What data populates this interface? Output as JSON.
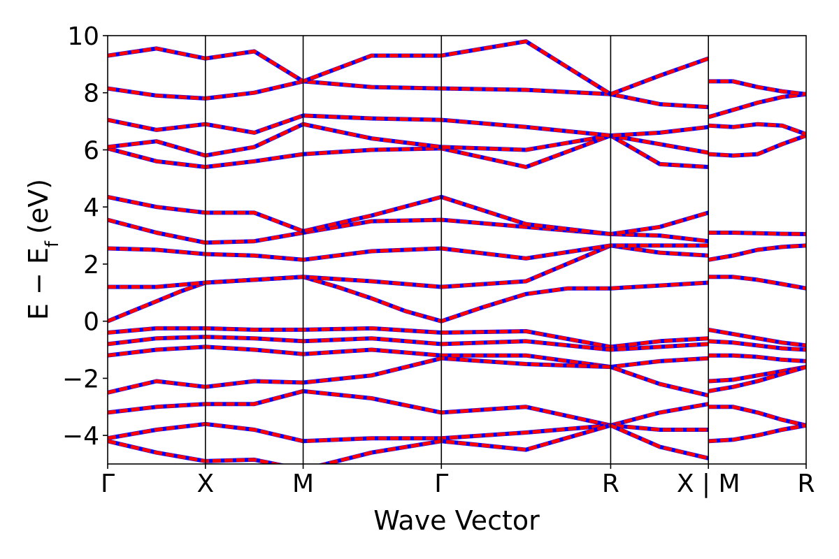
{
  "chart_data": {
    "type": "line",
    "xlabel": "Wave Vector",
    "ylabel_main": "E − E",
    "ylabel_sub": "f",
    "ylabel_unit": "(eV)",
    "ylim": [
      -5,
      10
    ],
    "yticks": [
      -4,
      -2,
      0,
      2,
      4,
      6,
      8,
      10
    ],
    "ytick_labels": [
      "−4",
      "−2",
      "0",
      "2",
      "4",
      "6",
      "8",
      "10"
    ],
    "xticks": [
      0,
      1,
      2,
      3.4142,
      5.1463,
      6.1463,
      7.1463
    ],
    "xtick_labels": [
      "Γ",
      "X",
      "M",
      "Γ",
      "R",
      "X | M",
      "R"
    ],
    "grid": false,
    "line_colors": {
      "primary": "#ff0000",
      "overlay": "#0000ff"
    },
    "segments": [
      {
        "name": "Γ–X–M–Γ–R–X",
        "series": [
          {
            "x": [
              0,
              0.25,
              0.5,
              0.75,
              1,
              1.25,
              1.5,
              1.75,
              2,
              2.35,
              2.7,
              3.05,
              3.4142,
              3.85,
              4.28,
              4.71,
              5.1463,
              5.4,
              5.65,
              5.9,
              6.1463
            ],
            "y": [
              0.0,
              0.35,
              0.7,
              1.05,
              1.35,
              1.4,
              1.45,
              1.5,
              1.55,
              1.2,
              0.8,
              0.35,
              0.0,
              0.5,
              0.95,
              1.15,
              1.15,
              1.2,
              1.25,
              1.3,
              1.35
            ]
          },
          {
            "x": [
              0,
              0.5,
              1,
              1.5,
              2,
              2.7,
              3.4142,
              4.28,
              5.1463,
              5.65,
              6.1463
            ],
            "y": [
              1.2,
              1.2,
              1.35,
              1.45,
              1.55,
              1.4,
              1.2,
              1.4,
              2.65,
              2.4,
              2.3
            ]
          },
          {
            "x": [
              0,
              0.5,
              1,
              1.5,
              2,
              2.7,
              3.4142,
              4.28,
              5.1463,
              5.65,
              6.1463
            ],
            "y": [
              2.55,
              2.5,
              2.35,
              2.3,
              2.15,
              2.45,
              2.55,
              2.2,
              2.65,
              2.65,
              2.65
            ]
          },
          {
            "x": [
              0,
              0.5,
              1,
              1.5,
              2,
              2.7,
              3.4142,
              4.28,
              5.1463,
              5.65,
              6.1463
            ],
            "y": [
              3.55,
              3.1,
              2.75,
              2.8,
              3.1,
              3.5,
              3.55,
              3.3,
              3.05,
              3.0,
              2.8
            ]
          },
          {
            "x": [
              0,
              0.5,
              1,
              1.5,
              2,
              2.7,
              3.4142,
              4.28,
              5.1463,
              5.65,
              6.1463
            ],
            "y": [
              4.35,
              4.0,
              3.8,
              3.8,
              3.15,
              3.7,
              4.35,
              3.4,
              3.05,
              3.3,
              3.8
            ]
          },
          {
            "x": [
              0,
              0.5,
              1,
              1.5,
              2,
              2.7,
              3.4142,
              4.28,
              5.1463,
              5.65,
              6.1463
            ],
            "y": [
              -0.4,
              -0.25,
              -0.25,
              -0.3,
              -0.3,
              -0.25,
              -0.4,
              -0.35,
              -0.9,
              -0.7,
              -0.6
            ]
          },
          {
            "x": [
              0,
              0.5,
              1,
              1.5,
              2,
              2.7,
              3.4142,
              4.28,
              5.1463,
              5.65,
              6.1463
            ],
            "y": [
              -0.8,
              -0.6,
              -0.55,
              -0.6,
              -0.7,
              -0.6,
              -0.8,
              -0.7,
              -1.0,
              -0.9,
              -0.8
            ]
          },
          {
            "x": [
              0,
              0.5,
              1,
              1.5,
              2,
              2.7,
              3.4142,
              4.28,
              5.1463,
              5.65,
              6.1463
            ],
            "y": [
              -1.2,
              -1.0,
              -0.9,
              -1.0,
              -1.15,
              -1.0,
              -1.2,
              -1.2,
              -1.6,
              -1.4,
              -1.3
            ]
          },
          {
            "x": [
              0,
              0.5,
              1,
              1.5,
              2,
              2.7,
              3.4142,
              4.28,
              5.1463,
              5.65,
              6.1463
            ],
            "y": [
              -2.5,
              -2.1,
              -2.3,
              -2.1,
              -2.15,
              -1.9,
              -1.3,
              -1.5,
              -1.6,
              -2.2,
              -2.6
            ]
          },
          {
            "x": [
              0,
              0.5,
              1,
              1.5,
              2,
              2.7,
              3.4142,
              4.28,
              5.1463,
              5.65,
              6.1463
            ],
            "y": [
              -3.2,
              -3.0,
              -2.9,
              -2.9,
              -2.45,
              -2.7,
              -3.2,
              -3.0,
              -3.65,
              -3.2,
              -2.9
            ]
          },
          {
            "x": [
              0,
              0.5,
              1,
              1.5,
              2,
              2.7,
              3.4142,
              4.28,
              5.1463,
              5.65,
              6.1463
            ],
            "y": [
              -4.1,
              -3.8,
              -3.6,
              -3.8,
              -4.2,
              -4.1,
              -4.1,
              -3.9,
              -3.65,
              -3.8,
              -3.8
            ]
          },
          {
            "x": [
              0,
              0.5,
              1,
              1.5,
              2,
              2.7,
              3.4142,
              4.28,
              5.1463,
              5.65,
              6.1463
            ],
            "y": [
              -4.2,
              -4.6,
              -4.9,
              -4.85,
              -5.2,
              -4.6,
              -4.2,
              -4.5,
              -3.65,
              -4.4,
              -4.8
            ]
          },
          {
            "x": [
              0,
              0.5,
              1,
              1.5,
              2,
              2.7,
              3.4142,
              4.28,
              5.1463,
              5.65,
              6.1463
            ],
            "y": [
              6.05,
              5.6,
              5.4,
              5.6,
              5.85,
              6.0,
              6.05,
              5.4,
              6.5,
              5.5,
              5.4
            ]
          },
          {
            "x": [
              0,
              0.5,
              1,
              1.5,
              2,
              2.7,
              3.4142,
              4.28,
              5.1463,
              5.65,
              6.1463
            ],
            "y": [
              6.1,
              6.3,
              5.8,
              6.1,
              6.9,
              6.4,
              6.1,
              6.0,
              6.5,
              6.2,
              5.9
            ]
          },
          {
            "x": [
              0,
              0.5,
              1,
              1.5,
              2,
              2.7,
              3.4142,
              4.28,
              5.1463,
              5.65,
              6.1463
            ],
            "y": [
              7.05,
              6.7,
              6.9,
              6.6,
              7.2,
              7.1,
              7.05,
              6.8,
              6.5,
              6.6,
              6.8
            ]
          },
          {
            "x": [
              0,
              0.5,
              1,
              1.5,
              2,
              2.7,
              3.4142,
              4.28,
              5.1463,
              5.65,
              6.1463
            ],
            "y": [
              8.15,
              7.9,
              7.8,
              8.0,
              8.4,
              8.2,
              8.15,
              8.1,
              7.95,
              7.6,
              7.5
            ]
          },
          {
            "x": [
              0,
              0.5,
              1,
              1.5,
              2,
              2.7,
              3.4142,
              4.28,
              5.1463,
              5.65,
              6.1463
            ],
            "y": [
              9.3,
              9.55,
              9.2,
              9.45,
              8.4,
              9.3,
              9.3,
              9.8,
              7.95,
              8.6,
              9.2
            ]
          }
        ]
      },
      {
        "name": "M–R",
        "series": [
          {
            "x": [
              6.1463,
              6.4,
              6.65,
              6.9,
              7.1463
            ],
            "y": [
              1.55,
              1.55,
              1.45,
              1.3,
              1.15
            ]
          },
          {
            "x": [
              6.1463,
              6.4,
              6.65,
              6.9,
              7.1463
            ],
            "y": [
              2.15,
              2.3,
              2.5,
              2.6,
              2.65
            ]
          },
          {
            "x": [
              6.1463,
              6.4,
              6.65,
              6.9,
              7.1463
            ],
            "y": [
              3.1,
              3.1,
              3.08,
              3.06,
              3.05
            ]
          },
          {
            "x": [
              6.1463,
              6.4,
              6.65,
              6.9,
              7.1463
            ],
            "y": [
              -0.3,
              -0.45,
              -0.6,
              -0.75,
              -0.85
            ]
          },
          {
            "x": [
              6.1463,
              6.4,
              6.65,
              6.9,
              7.1463
            ],
            "y": [
              -0.7,
              -0.75,
              -0.85,
              -0.95,
              -1.0
            ]
          },
          {
            "x": [
              6.1463,
              6.4,
              6.65,
              6.9,
              7.1463
            ],
            "y": [
              -1.2,
              -1.2,
              -1.25,
              -1.35,
              -1.4
            ]
          },
          {
            "x": [
              6.1463,
              6.4,
              6.65,
              6.9,
              7.1463
            ],
            "y": [
              -2.1,
              -2.05,
              -1.9,
              -1.75,
              -1.6
            ]
          },
          {
            "x": [
              6.1463,
              6.4,
              6.65,
              6.9,
              7.1463
            ],
            "y": [
              -2.45,
              -2.3,
              -2.1,
              -1.85,
              -1.6
            ]
          },
          {
            "x": [
              6.1463,
              6.4,
              6.65,
              6.9,
              7.1463
            ],
            "y": [
              -3.0,
              -3.0,
              -3.2,
              -3.45,
              -3.65
            ]
          },
          {
            "x": [
              6.1463,
              6.4,
              6.65,
              6.9,
              7.1463
            ],
            "y": [
              -4.2,
              -4.15,
              -4.0,
              -3.8,
              -3.65
            ]
          },
          {
            "x": [
              6.1463,
              6.4,
              6.65,
              6.9,
              7.1463
            ],
            "y": [
              5.85,
              5.8,
              5.85,
              6.2,
              6.5
            ]
          },
          {
            "x": [
              6.1463,
              6.4,
              6.65,
              6.9,
              7.1463
            ],
            "y": [
              6.85,
              6.8,
              6.9,
              6.85,
              6.55
            ]
          },
          {
            "x": [
              6.1463,
              6.4,
              6.65,
              6.9,
              7.1463
            ],
            "y": [
              7.15,
              7.4,
              7.65,
              7.85,
              7.95
            ]
          },
          {
            "x": [
              6.1463,
              6.4,
              6.65,
              6.9,
              7.1463
            ],
            "y": [
              8.4,
              8.4,
              8.2,
              8.05,
              7.95
            ]
          }
        ]
      }
    ]
  }
}
